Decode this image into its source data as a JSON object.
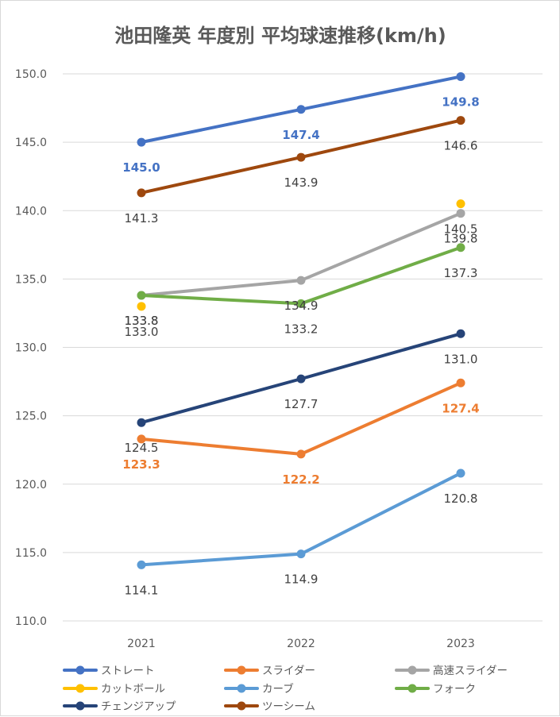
{
  "chart_data": {
    "type": "line",
    "title": "池田隆英 年度別 平均球速推移(km/h)",
    "xlabel": "",
    "ylabel": "",
    "categories": [
      "2021",
      "2022",
      "2023"
    ],
    "ylim": [
      110,
      150
    ],
    "yticks": [
      "110.0",
      "115.0",
      "120.0",
      "125.0",
      "130.0",
      "135.0",
      "140.0",
      "145.0",
      "150.0"
    ],
    "grid": true,
    "legend_position": "bottom",
    "series": [
      {
        "name": "ストレート",
        "color": "#4472c4",
        "values": [
          145.0,
          147.4,
          149.8
        ],
        "labels": [
          "145.0",
          "147.4",
          "149.8"
        ],
        "label_color": "#4472c4"
      },
      {
        "name": "スライダー",
        "color": "#ed7d31",
        "values": [
          123.3,
          122.2,
          127.4
        ],
        "labels": [
          "123.3",
          "122.2",
          "127.4"
        ],
        "label_color": "#ed7d31"
      },
      {
        "name": "高速スライダー",
        "color": "#a5a5a5",
        "values": [
          133.8,
          134.9,
          139.8
        ],
        "labels": [
          "133.8",
          "134.9",
          "139.8"
        ],
        "label_color": "#404040"
      },
      {
        "name": "カットボール",
        "color": "#ffc000",
        "values": [
          133.0,
          null,
          140.5
        ],
        "labels": [
          "133.0",
          "",
          "140.5"
        ],
        "label_color": "#404040"
      },
      {
        "name": "カーブ",
        "color": "#5b9bd5",
        "values": [
          114.1,
          114.9,
          120.8
        ],
        "labels": [
          "114.1",
          "114.9",
          "120.8"
        ],
        "label_color": "#404040"
      },
      {
        "name": "フォーク",
        "color": "#70ad47",
        "values": [
          133.8,
          133.2,
          137.3
        ],
        "labels": [
          "133.8",
          "133.2",
          "137.3"
        ],
        "label_color": "#404040"
      },
      {
        "name": "チェンジアップ",
        "color": "#264478",
        "values": [
          124.5,
          127.7,
          131.0
        ],
        "labels": [
          "124.5",
          "127.7",
          "131.0"
        ],
        "label_color": "#404040"
      },
      {
        "name": "ツーシーム",
        "color": "#9e480e",
        "values": [
          141.3,
          143.9,
          146.6
        ],
        "labels": [
          "141.3",
          "143.9",
          "146.6"
        ],
        "label_color": "#404040"
      }
    ]
  }
}
